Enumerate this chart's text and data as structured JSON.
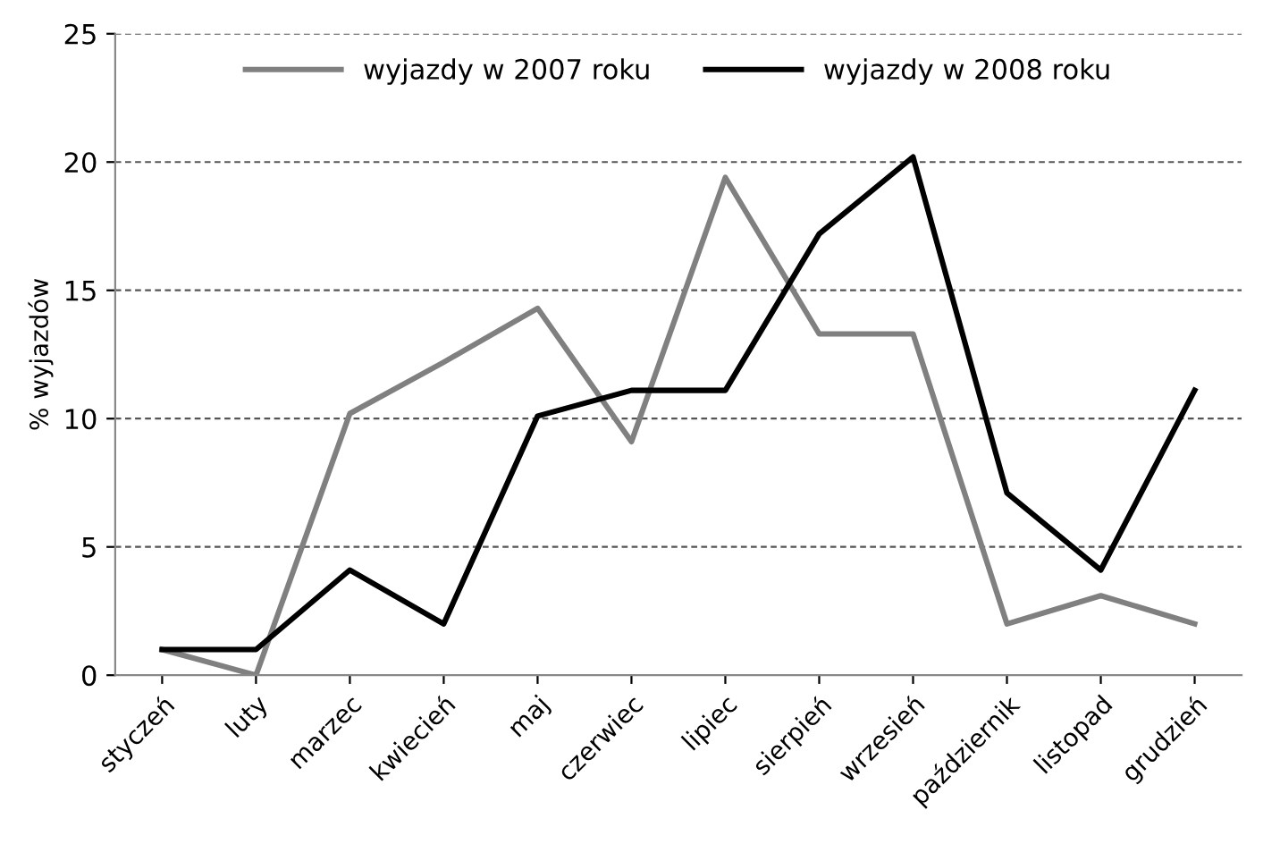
{
  "chart_data": {
    "type": "line",
    "ylabel": "% wyjazdów",
    "categories": [
      "styczeń",
      "luty",
      "marzec",
      "kwiecień",
      "maj",
      "czerwiec",
      "lipiec",
      "sierpień",
      "wrzesień",
      "październik",
      "listopad",
      "grudzień"
    ],
    "series": [
      {
        "name": "wyjazdy w 2007 roku",
        "color": "#808080",
        "values": [
          1,
          0,
          10.2,
          12.2,
          14.3,
          9.1,
          19.4,
          13.3,
          13.3,
          2,
          3.1,
          2
        ]
      },
      {
        "name": "wyjazdy w 2008 roku",
        "color": "#000000",
        "values": [
          1,
          1,
          4.1,
          2,
          10.1,
          11.1,
          11.1,
          17.2,
          20.2,
          7.1,
          4.1,
          11.1
        ]
      }
    ],
    "ylim": [
      0,
      25
    ],
    "yticks": [
      0,
      5,
      10,
      15,
      20,
      25
    ],
    "grid": "y",
    "legend": "top",
    "marker": "none",
    "line_style": "solid"
  }
}
